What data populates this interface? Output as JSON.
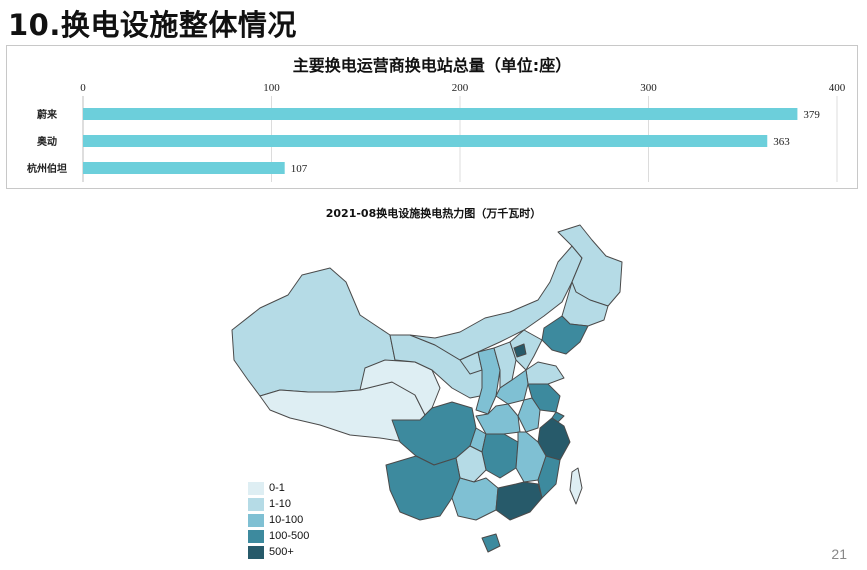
{
  "slide": {
    "title": "10.换电设施整体情况",
    "page_number": "21"
  },
  "chart_data": [
    {
      "type": "bar",
      "title": "主要换电运营商换电站总量（单位:座）",
      "categories": [
        "蔚来",
        "奥动",
        "杭州伯坦"
      ],
      "values": [
        379,
        363,
        107
      ],
      "xlim": [
        0,
        400
      ],
      "ticks": [
        "0",
        "100",
        "200",
        "300",
        "400"
      ],
      "grid": true,
      "bar_color": "#6ccfdb"
    },
    {
      "type": "heatmap",
      "title": "2021-08换电设施换电热力图（万千瓦时）",
      "legend": [
        {
          "label": "0-1",
          "color": "#deeef3"
        },
        {
          "label": "1-10",
          "color": "#b5dbe6"
        },
        {
          "label": "10-100",
          "color": "#7fc0d3"
        },
        {
          "label": "100-500",
          "color": "#3d8a9e"
        },
        {
          "label": "500+",
          "color": "#275a6a"
        }
      ]
    }
  ]
}
